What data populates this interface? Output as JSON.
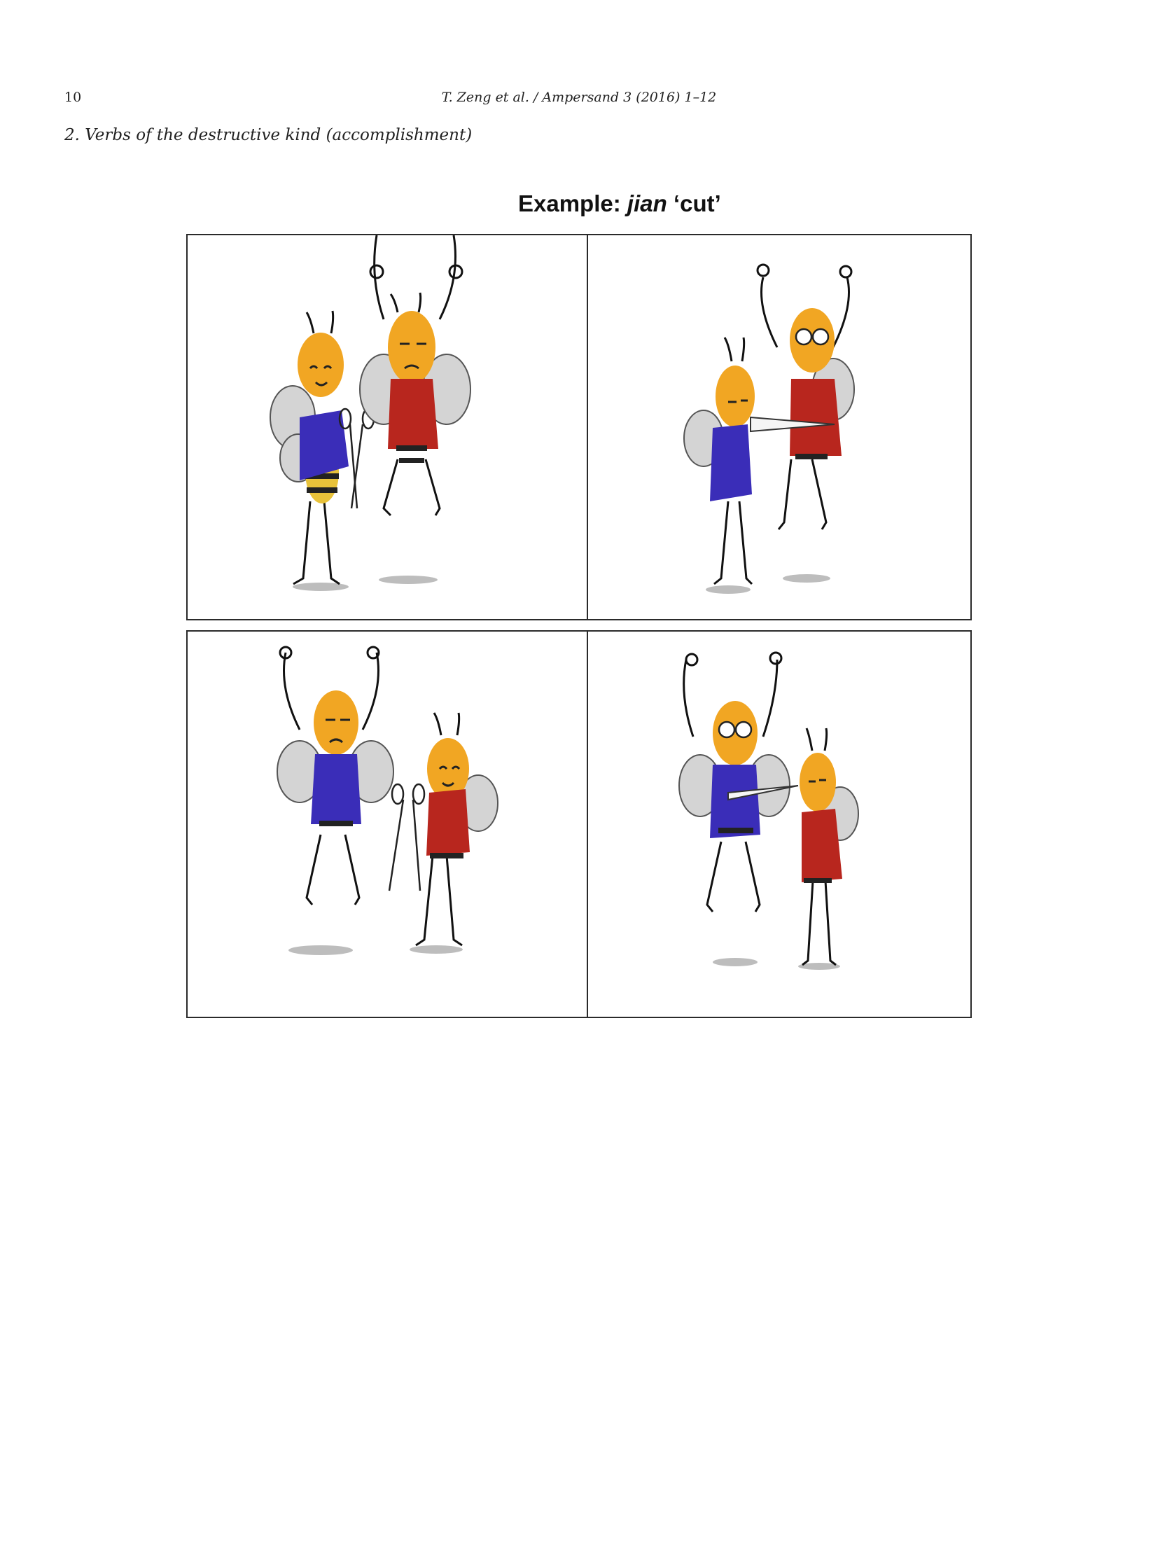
{
  "header": {
    "page_number": "10",
    "running_head": "T. Zeng et al. / Ampersand 3 (2016) 1–12"
  },
  "section": {
    "heading": "2. Verbs of the destructive kind (accomplishment)"
  },
  "figure": {
    "title_prefix": "Example:",
    "title_word": "jian",
    "title_gloss": "‘cut’"
  },
  "colors": {
    "bee_head": "#f1a623",
    "blue_vest": "#3a2db8",
    "red_vest": "#b8261e",
    "wing": "#d4d4d4",
    "panel_border": "#2a2a2a"
  }
}
